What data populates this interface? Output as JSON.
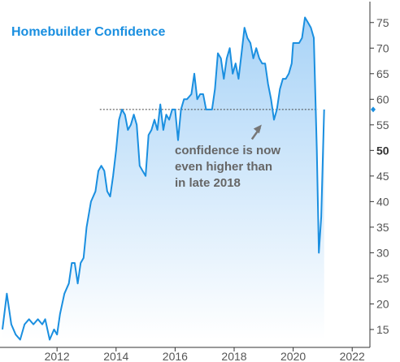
{
  "chart_data": {
    "type": "area",
    "title": "Homebuilder Confidence",
    "xlabel": "",
    "ylabel": "",
    "xlim": [
      2010.15,
      2022.6
    ],
    "ylim": [
      11.5,
      77.5
    ],
    "x_ticks": [
      2012,
      2014,
      2016,
      2018,
      2020,
      2022
    ],
    "y_ticks": [
      15,
      20,
      25,
      30,
      35,
      40,
      45,
      50,
      55,
      60,
      65,
      70,
      75
    ],
    "y_tick_bold": 50,
    "reference_line": 58,
    "latest_marker": 58,
    "annotation": {
      "lines": [
        "confidence is now",
        "even higher than",
        "in late 2018"
      ],
      "arrow_target": [
        2018.85,
        56
      ]
    },
    "series": [
      {
        "color": "#1a8fe0",
        "points": [
          [
            2010.15,
            15
          ],
          [
            2010.3,
            22
          ],
          [
            2010.45,
            16
          ],
          [
            2010.6,
            14
          ],
          [
            2010.75,
            13
          ],
          [
            2010.9,
            16
          ],
          [
            2011.05,
            17
          ],
          [
            2011.2,
            16
          ],
          [
            2011.35,
            17
          ],
          [
            2011.5,
            16
          ],
          [
            2011.6,
            17
          ],
          [
            2011.75,
            13
          ],
          [
            2011.9,
            15
          ],
          [
            2012.0,
            14
          ],
          [
            2012.1,
            18
          ],
          [
            2012.25,
            22
          ],
          [
            2012.4,
            24
          ],
          [
            2012.5,
            28
          ],
          [
            2012.6,
            28
          ],
          [
            2012.7,
            24
          ],
          [
            2012.8,
            28
          ],
          [
            2012.9,
            29
          ],
          [
            2013.0,
            35
          ],
          [
            2013.15,
            40
          ],
          [
            2013.3,
            42
          ],
          [
            2013.4,
            46
          ],
          [
            2013.5,
            47
          ],
          [
            2013.6,
            46
          ],
          [
            2013.7,
            42
          ],
          [
            2013.8,
            41
          ],
          [
            2013.9,
            45
          ],
          [
            2014.0,
            50
          ],
          [
            2014.1,
            56
          ],
          [
            2014.2,
            58
          ],
          [
            2014.3,
            57
          ],
          [
            2014.4,
            54
          ],
          [
            2014.5,
            55
          ],
          [
            2014.6,
            57
          ],
          [
            2014.7,
            55
          ],
          [
            2014.8,
            47
          ],
          [
            2014.9,
            46
          ],
          [
            2015.0,
            45
          ],
          [
            2015.1,
            53
          ],
          [
            2015.2,
            54
          ],
          [
            2015.3,
            56
          ],
          [
            2015.4,
            54
          ],
          [
            2015.5,
            59
          ],
          [
            2015.6,
            54
          ],
          [
            2015.7,
            57
          ],
          [
            2015.8,
            56
          ],
          [
            2015.9,
            58
          ],
          [
            2016.0,
            58
          ],
          [
            2016.1,
            52
          ],
          [
            2016.2,
            58
          ],
          [
            2016.3,
            60
          ],
          [
            2016.4,
            60
          ],
          [
            2016.55,
            61
          ],
          [
            2016.65,
            65
          ],
          [
            2016.75,
            60
          ],
          [
            2016.85,
            61
          ],
          [
            2016.95,
            61
          ],
          [
            2017.05,
            58
          ],
          [
            2017.15,
            58
          ],
          [
            2017.25,
            58
          ],
          [
            2017.35,
            62
          ],
          [
            2017.45,
            69
          ],
          [
            2017.55,
            68
          ],
          [
            2017.65,
            64
          ],
          [
            2017.75,
            68
          ],
          [
            2017.85,
            70
          ],
          [
            2017.95,
            65
          ],
          [
            2018.05,
            67
          ],
          [
            2018.15,
            64
          ],
          [
            2018.25,
            69
          ],
          [
            2018.35,
            74
          ],
          [
            2018.45,
            72
          ],
          [
            2018.55,
            71
          ],
          [
            2018.65,
            68
          ],
          [
            2018.75,
            70
          ],
          [
            2018.85,
            68
          ],
          [
            2018.95,
            67
          ],
          [
            2019.05,
            67
          ],
          [
            2019.15,
            63
          ],
          [
            2019.25,
            60
          ],
          [
            2019.35,
            56
          ],
          [
            2019.45,
            58
          ],
          [
            2019.55,
            62
          ],
          [
            2019.65,
            64
          ],
          [
            2019.75,
            64
          ],
          [
            2019.85,
            65
          ],
          [
            2019.95,
            67
          ],
          [
            2020.0,
            71
          ],
          [
            2020.1,
            71
          ],
          [
            2020.2,
            71
          ],
          [
            2020.3,
            72
          ],
          [
            2020.4,
            76
          ],
          [
            2020.5,
            75
          ],
          [
            2020.6,
            74
          ],
          [
            2020.7,
            72
          ],
          [
            2020.8,
            50
          ],
          [
            2020.87,
            30
          ],
          [
            2020.95,
            37
          ],
          [
            2021.05,
            58
          ]
        ]
      }
    ]
  },
  "colors": {
    "line": "#1a8fe0",
    "title": "#1a8fe0",
    "fill_top": "#a8d3f7",
    "fill_bottom": "#ffffff",
    "reference_line": "#444444",
    "annotation_text": "#666666",
    "arrow": "#777777",
    "axis": "#333333",
    "tick_text": "#555555",
    "marker": "#1a8fe0"
  }
}
